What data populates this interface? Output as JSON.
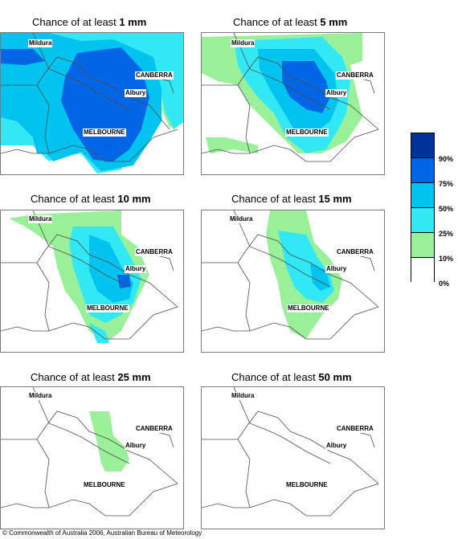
{
  "panels": [
    {
      "title_prefix": "Chance of at least ",
      "amount": "1 mm"
    },
    {
      "title_prefix": "Chance of at least ",
      "amount": "5 mm"
    },
    {
      "title_prefix": "Chance of at least ",
      "amount": "10 mm"
    },
    {
      "title_prefix": "Chance of at least ",
      "amount": "15 mm"
    },
    {
      "title_prefix": "Chance of at least ",
      "amount": "25 mm"
    },
    {
      "title_prefix": "Chance of at least ",
      "amount": "50 mm"
    }
  ],
  "cities": {
    "mildura": "Mildura",
    "canberra": "CANBERRA",
    "albury": "Albury",
    "melbourne": "MELBOURNE"
  },
  "legend": {
    "colors": [
      "#003399",
      "#0066e6",
      "#00c3f0",
      "#33e8f5",
      "#99f099",
      "#ffffff"
    ],
    "labels": [
      "90%",
      "75%",
      "50%",
      "25%",
      "10%",
      "0%"
    ]
  },
  "copyright": "© Commonwealth of Australia 2006, Australian Bureau of Meteorology"
}
